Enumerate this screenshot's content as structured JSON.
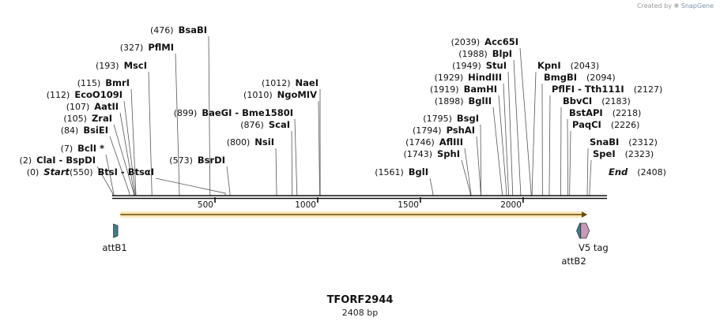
{
  "credit": {
    "text": "Created by",
    "brand": "SnapGene"
  },
  "plasmid": {
    "name": "TFORF2944",
    "length_label": "2408 bp",
    "length": 2408
  },
  "axis": {
    "ticks": [
      500,
      1000,
      1500,
      2000
    ]
  },
  "sites": [
    {
      "name": "Start",
      "pos": 0,
      "pos_label": "(0)",
      "italic": true,
      "side": "left"
    },
    {
      "name": "ClaI  -  BspDI",
      "pos": 2,
      "pos_label": "(2)",
      "side": "left"
    },
    {
      "name": "BclI *",
      "pos": 7,
      "pos_label": "(7)",
      "side": "left"
    },
    {
      "name": "BsiEI",
      "pos": 84,
      "pos_label": "(84)",
      "side": "left"
    },
    {
      "name": "ZraI",
      "pos": 105,
      "pos_label": "(105)",
      "side": "left"
    },
    {
      "name": "AatII",
      "pos": 107,
      "pos_label": "(107)",
      "side": "left"
    },
    {
      "name": "EcoO109I",
      "pos": 112,
      "pos_label": "(112)",
      "side": "left"
    },
    {
      "name": "BmrI",
      "pos": 115,
      "pos_label": "(115)",
      "side": "left"
    },
    {
      "name": "MscI",
      "pos": 193,
      "pos_label": "(193)",
      "side": "left"
    },
    {
      "name": "PflMI",
      "pos": 327,
      "pos_label": "(327)",
      "side": "left"
    },
    {
      "name": "BsaBI",
      "pos": 476,
      "pos_label": "(476)",
      "side": "left"
    },
    {
      "name": "BtsI  -  BtsαI",
      "pos": 550,
      "pos_label": "(550)",
      "side": "left"
    },
    {
      "name": "BsrDI",
      "pos": 573,
      "pos_label": "(573)",
      "side": "left"
    },
    {
      "name": "NsiI",
      "pos": 800,
      "pos_label": "(800)",
      "side": "left"
    },
    {
      "name": "ScaI",
      "pos": 876,
      "pos_label": "(876)",
      "side": "left"
    },
    {
      "name": "BaeGI  -  Bme1580I",
      "pos": 899,
      "pos_label": "(899)",
      "side": "left"
    },
    {
      "name": "NgoMIV",
      "pos": 1010,
      "pos_label": "(1010)",
      "side": "left"
    },
    {
      "name": "NaeI",
      "pos": 1012,
      "pos_label": "(1012)",
      "side": "left"
    },
    {
      "name": "BglI",
      "pos": 1561,
      "pos_label": "(1561)",
      "side": "left"
    },
    {
      "name": "SphI",
      "pos": 1743,
      "pos_label": "(1743)",
      "side": "left"
    },
    {
      "name": "AflIII",
      "pos": 1746,
      "pos_label": "(1746)",
      "side": "left"
    },
    {
      "name": "PshAI",
      "pos": 1794,
      "pos_label": "(1794)",
      "side": "left"
    },
    {
      "name": "BsgI",
      "pos": 1795,
      "pos_label": "(1795)",
      "side": "left"
    },
    {
      "name": "BglII",
      "pos": 1898,
      "pos_label": "(1898)",
      "side": "left"
    },
    {
      "name": "BamHI",
      "pos": 1919,
      "pos_label": "(1919)",
      "side": "left"
    },
    {
      "name": "HindIII",
      "pos": 1929,
      "pos_label": "(1929)",
      "side": "left"
    },
    {
      "name": "StuI",
      "pos": 1949,
      "pos_label": "(1949)",
      "side": "left"
    },
    {
      "name": "BlpI",
      "pos": 1988,
      "pos_label": "(1988)",
      "side": "left"
    },
    {
      "name": "Acc65I",
      "pos": 2039,
      "pos_label": "(2039)",
      "side": "left"
    },
    {
      "name": "KpnI",
      "pos": 2043,
      "pos_label": "(2043)",
      "side": "right"
    },
    {
      "name": "BmgBI",
      "pos": 2094,
      "pos_label": "(2094)",
      "side": "right"
    },
    {
      "name": "PflFI  -  Tth111I",
      "pos": 2127,
      "pos_label": "(2127)",
      "side": "right"
    },
    {
      "name": "BbvCI",
      "pos": 2183,
      "pos_label": "(2183)",
      "side": "right"
    },
    {
      "name": "BstAPI",
      "pos": 2218,
      "pos_label": "(2218)",
      "side": "right"
    },
    {
      "name": "PaqCI",
      "pos": 2226,
      "pos_label": "(2226)",
      "side": "right"
    },
    {
      "name": "SnaBI",
      "pos": 2312,
      "pos_label": "(2312)",
      "side": "right"
    },
    {
      "name": "SpeI",
      "pos": 2323,
      "pos_label": "(2323)",
      "side": "right"
    },
    {
      "name": "End",
      "pos": 2408,
      "pos_label": "(2408)",
      "italic": true,
      "side": "right"
    }
  ],
  "features": [
    {
      "name": "attB1",
      "start": 6,
      "end": 27,
      "direction": "none",
      "color": "#3d7f8f"
    },
    {
      "name": "attB2",
      "start": 2260,
      "end": 2280,
      "direction": "reverse",
      "color": "#3d7f8f"
    },
    {
      "name": "V5 tag",
      "start": 2280,
      "end": 2322,
      "direction": "forward",
      "color": "#c99ab8"
    }
  ],
  "orf": {
    "start": 40,
    "end": 2312,
    "color": "#f2b93b"
  }
}
